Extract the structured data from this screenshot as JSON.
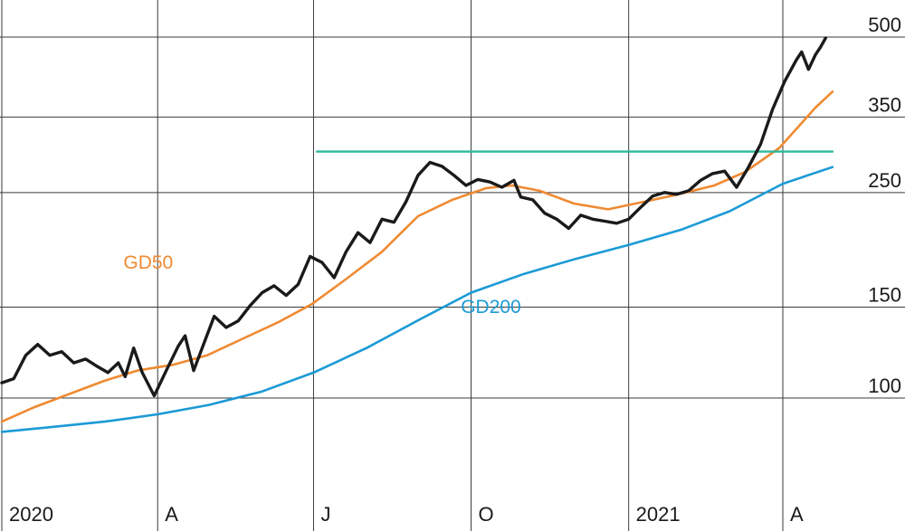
{
  "chart_data": {
    "type": "line",
    "title": "",
    "xlabel": "",
    "ylabel": "",
    "y_scale": "log",
    "ylim": [
      72,
      520
    ],
    "y_ticks": [
      100,
      150,
      250,
      350,
      500
    ],
    "y_tick_labels": [
      "100",
      "150",
      "250",
      "350",
      "500"
    ],
    "grid": true,
    "x_ticks": [
      {
        "label": "2020",
        "date": "2020-01"
      },
      {
        "label": "A",
        "date": "2020-04"
      },
      {
        "label": "J",
        "date": "2020-07"
      },
      {
        "label": "O",
        "date": "2020-10"
      },
      {
        "label": "2021",
        "date": "2021-01"
      },
      {
        "label": "A",
        "date": "2021-04"
      }
    ],
    "xlim": [
      "2020-01-01",
      "2021-04-30"
    ],
    "series": [
      {
        "name": "",
        "color": "#1a1a1a",
        "points": [
          [
            "2020-01-01",
            107
          ],
          [
            "2020-01-08",
            109
          ],
          [
            "2020-01-15",
            121
          ],
          [
            "2020-01-22",
            127
          ],
          [
            "2020-01-29",
            121
          ],
          [
            "2020-02-05",
            123
          ],
          [
            "2020-02-12",
            117
          ],
          [
            "2020-02-19",
            119
          ],
          [
            "2020-02-26",
            115
          ],
          [
            "2020-03-03",
            112
          ],
          [
            "2020-03-09",
            117
          ],
          [
            "2020-03-13",
            110
          ],
          [
            "2020-03-18",
            125
          ],
          [
            "2020-03-23",
            112
          ],
          [
            "2020-03-30",
            101
          ],
          [
            "2020-04-06",
            113
          ],
          [
            "2020-04-13",
            126
          ],
          [
            "2020-04-17",
            132
          ],
          [
            "2020-04-22",
            113
          ],
          [
            "2020-04-27",
            125
          ],
          [
            "2020-05-04",
            144
          ],
          [
            "2020-05-11",
            137
          ],
          [
            "2020-05-18",
            141
          ],
          [
            "2020-05-25",
            151
          ],
          [
            "2020-06-01",
            160
          ],
          [
            "2020-06-08",
            165
          ],
          [
            "2020-06-15",
            158
          ],
          [
            "2020-06-22",
            166
          ],
          [
            "2020-06-29",
            188
          ],
          [
            "2020-07-06",
            183
          ],
          [
            "2020-07-13",
            171
          ],
          [
            "2020-07-20",
            192
          ],
          [
            "2020-07-27",
            209
          ],
          [
            "2020-08-03",
            200
          ],
          [
            "2020-08-10",
            222
          ],
          [
            "2020-08-17",
            219
          ],
          [
            "2020-08-24",
            240
          ],
          [
            "2020-08-31",
            270
          ],
          [
            "2020-09-07",
            286
          ],
          [
            "2020-09-14",
            281
          ],
          [
            "2020-09-21",
            270
          ],
          [
            "2020-09-28",
            258
          ],
          [
            "2020-10-05",
            265
          ],
          [
            "2020-10-12",
            262
          ],
          [
            "2020-10-19",
            256
          ],
          [
            "2020-10-26",
            264
          ],
          [
            "2020-10-30",
            245
          ],
          [
            "2020-11-06",
            242
          ],
          [
            "2020-11-13",
            228
          ],
          [
            "2020-11-20",
            222
          ],
          [
            "2020-11-27",
            213
          ],
          [
            "2020-12-04",
            226
          ],
          [
            "2020-12-11",
            222
          ],
          [
            "2020-12-18",
            220
          ],
          [
            "2020-12-25",
            218
          ],
          [
            "2021-01-01",
            222
          ],
          [
            "2021-01-08",
            234
          ],
          [
            "2021-01-15",
            246
          ],
          [
            "2021-01-22",
            250
          ],
          [
            "2021-01-29",
            248
          ],
          [
            "2021-02-05",
            252
          ],
          [
            "2021-02-12",
            264
          ],
          [
            "2021-02-19",
            272
          ],
          [
            "2021-02-26",
            275
          ],
          [
            "2021-03-05",
            256
          ],
          [
            "2021-03-12",
            280
          ],
          [
            "2021-03-19",
            310
          ],
          [
            "2021-03-26",
            362
          ],
          [
            "2021-04-02",
            410
          ],
          [
            "2021-04-09",
            452
          ],
          [
            "2021-04-12",
            468
          ],
          [
            "2021-04-16",
            433
          ],
          [
            "2021-04-20",
            462
          ],
          [
            "2021-04-23",
            478
          ],
          [
            "2021-04-26",
            498
          ]
        ]
      },
      {
        "name": "GD50",
        "color": "#ef8a32",
        "points": [
          [
            "2020-01-01",
            90
          ],
          [
            "2020-01-20",
            96
          ],
          [
            "2020-02-10",
            102
          ],
          [
            "2020-03-01",
            108
          ],
          [
            "2020-03-20",
            113
          ],
          [
            "2020-04-10",
            116
          ],
          [
            "2020-04-30",
            121
          ],
          [
            "2020-05-20",
            130
          ],
          [
            "2020-06-10",
            140
          ],
          [
            "2020-06-30",
            152
          ],
          [
            "2020-07-20",
            170
          ],
          [
            "2020-08-10",
            192
          ],
          [
            "2020-08-31",
            225
          ],
          [
            "2020-09-20",
            242
          ],
          [
            "2020-10-10",
            255
          ],
          [
            "2020-10-25",
            258
          ],
          [
            "2020-11-10",
            252
          ],
          [
            "2020-11-30",
            238
          ],
          [
            "2020-12-20",
            232
          ],
          [
            "2021-01-10",
            240
          ],
          [
            "2021-01-30",
            248
          ],
          [
            "2021-02-20",
            258
          ],
          [
            "2021-03-10",
            274
          ],
          [
            "2021-03-30",
            305
          ],
          [
            "2021-04-20",
            365
          ],
          [
            "2021-04-30",
            392
          ]
        ]
      },
      {
        "name": "GD200",
        "color": "#1b9ad6",
        "points": [
          [
            "2020-01-01",
            86
          ],
          [
            "2020-02-01",
            88
          ],
          [
            "2020-03-01",
            90
          ],
          [
            "2020-04-01",
            93
          ],
          [
            "2020-05-01",
            97
          ],
          [
            "2020-06-01",
            103
          ],
          [
            "2020-07-01",
            112
          ],
          [
            "2020-08-01",
            125
          ],
          [
            "2020-09-01",
            142
          ],
          [
            "2020-10-01",
            160
          ],
          [
            "2020-11-01",
            174
          ],
          [
            "2020-12-01",
            186
          ],
          [
            "2021-01-01",
            198
          ],
          [
            "2021-02-01",
            212
          ],
          [
            "2021-03-01",
            230
          ],
          [
            "2021-04-01",
            260
          ],
          [
            "2021-04-30",
            280
          ]
        ]
      },
      {
        "name": "",
        "color": "#2bb89a",
        "points": [
          [
            "2020-07-03",
            300
          ],
          [
            "2021-04-30",
            300
          ]
        ]
      }
    ],
    "annotations": [
      {
        "text": "GD50",
        "color": "#ef8a32",
        "date": "2020-03-12",
        "value": 178
      },
      {
        "text": "GD200",
        "color": "#1b9ad6",
        "date": "2020-09-25",
        "value": 146
      }
    ]
  }
}
